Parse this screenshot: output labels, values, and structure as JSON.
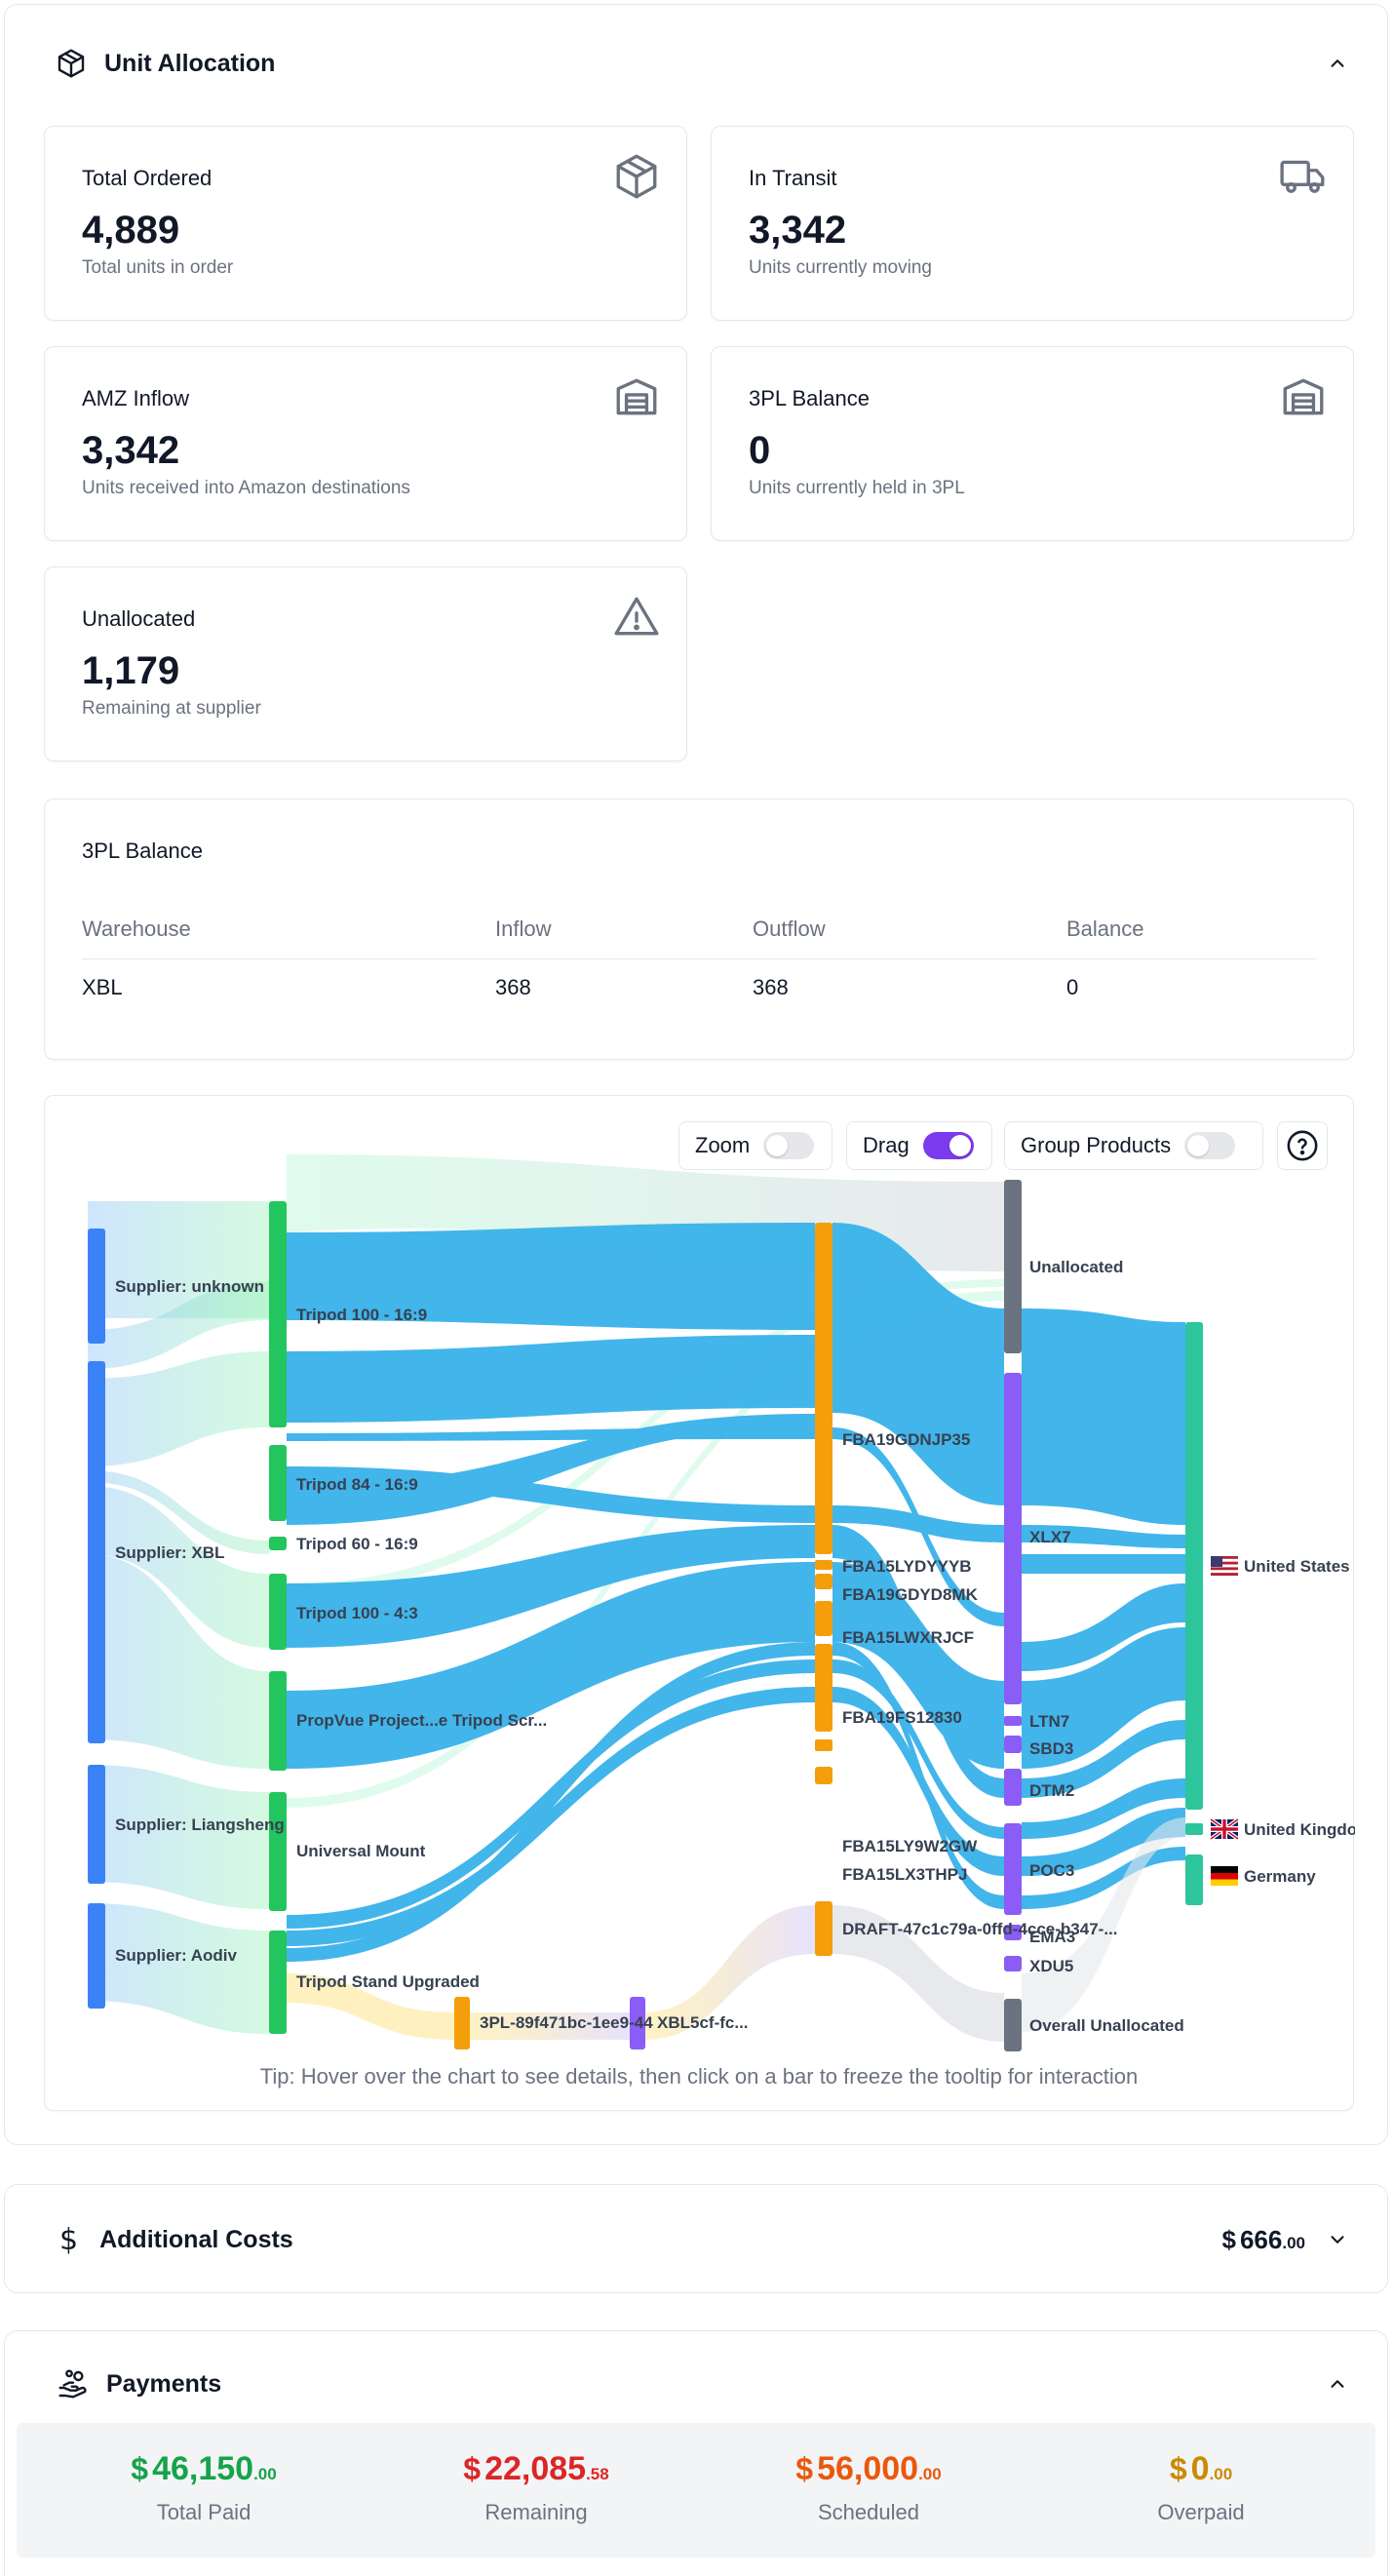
{
  "unit_allocation": {
    "title": "Unit Allocation",
    "kpis": {
      "total_ordered": {
        "label": "Total Ordered",
        "value": "4,889",
        "sub": "Total units in order",
        "icon": "package-icon"
      },
      "in_transit": {
        "label": "In Transit",
        "value": "3,342",
        "sub": "Units currently moving",
        "icon": "truck-icon"
      },
      "amz_inflow": {
        "label": "AMZ Inflow",
        "value": "3,342",
        "sub": "Units received into Amazon destinations",
        "icon": "warehouse-icon"
      },
      "threepl_balance": {
        "label": "3PL Balance",
        "value": "0",
        "sub": "Units currently held in 3PL",
        "icon": "warehouse-icon"
      },
      "unallocated": {
        "label": "Unallocated",
        "value": "1,179",
        "sub": "Remaining at supplier",
        "icon": "alert-triangle-icon"
      }
    },
    "balance_table": {
      "title": "3PL Balance",
      "columns": [
        "Warehouse",
        "Inflow",
        "Outflow",
        "Balance"
      ],
      "rows": [
        [
          "XBL",
          "368",
          "368",
          "0"
        ]
      ]
    },
    "chart_controls": {
      "zoom": {
        "label": "Zoom",
        "on": false
      },
      "drag": {
        "label": "Drag",
        "on": true
      },
      "group": {
        "label": "Group Products",
        "on": false
      }
    },
    "sankey_nodes": {
      "suppliers": [
        "Supplier: unknown",
        "Supplier: XBL",
        "Supplier: Liangsheng",
        "Supplier: Aodiv"
      ],
      "products": [
        "Tripod 100 - 16:9",
        "Tripod 84 - 16:9",
        "Tripod 60 - 16:9",
        "Tripod 100 - 4:3",
        "PropVue Project...e Tripod Scr...",
        "Universal Mount",
        "Tripod Stand Upgraded"
      ],
      "shipments": [
        "FBA19GDNJP35",
        "FBA15LYDYYYB",
        "FBA19GDYD8MK",
        "FBA15LWXRJCF",
        "FBA19FS12830",
        "FBA15LY9W2GW",
        "FBA15LX3THPJ",
        "DRAFT-47c1c79a-0ffd-4cce-b347-..."
      ],
      "threepl": [
        "3PL-89f471bc-1ee9-44",
        "XBL5cf-fc..."
      ],
      "destinations": [
        "Unallocated",
        "XLX7",
        "LTN7",
        "SBD3",
        "DTM2",
        "POC3",
        "EMA3",
        "XDU5",
        "Overall Unallocated"
      ],
      "countries": [
        "United States",
        "United Kingdom",
        "Germany"
      ]
    },
    "tip": "Tip: Hover over the chart to see details, then click on a bar to freeze the tooltip for interaction"
  },
  "additional_costs": {
    "title": "Additional Costs",
    "currency": "$",
    "amount_main": "666",
    "amount_cents": ".00"
  },
  "payments": {
    "title": "Payments",
    "items": [
      {
        "currency": "$",
        "main": "46,150",
        "cents": ".00",
        "label": "Total Paid",
        "color": "#16a34a"
      },
      {
        "currency": "$",
        "main": "22,085",
        "cents": ".58",
        "label": "Remaining",
        "color": "#dc2626"
      },
      {
        "currency": "$",
        "main": "56,000",
        "cents": ".00",
        "label": "Scheduled",
        "color": "#ea580c"
      },
      {
        "currency": "$",
        "main": "0",
        "cents": ".00",
        "label": "Overpaid",
        "color": "#ca8a04"
      }
    ]
  }
}
